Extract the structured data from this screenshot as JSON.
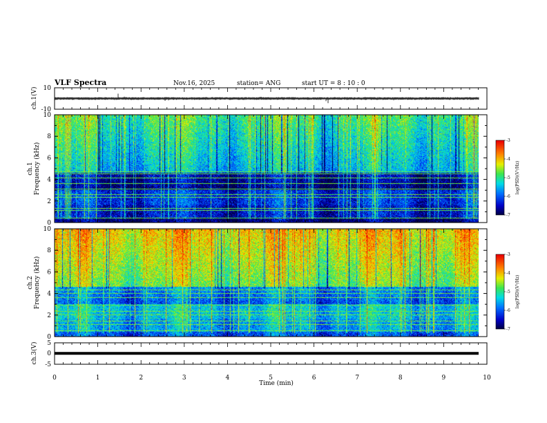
{
  "header": {
    "title": "VLF Spectra",
    "date": "Nov.16, 2025",
    "station": "station= ANG",
    "start": "start  UT =   8  : 10 : 0"
  },
  "colors": {
    "ch1_line": "#000000",
    "ch3_line": "#000000"
  },
  "chart_data": [
    {
      "type": "line",
      "name": "ch1-waveform",
      "ylabel": "ch.1(V)",
      "ylim": [
        -10,
        10
      ],
      "yticks": [
        "10",
        "-10"
      ],
      "xlim": [
        0,
        10
      ],
      "baseline": 0,
      "spikes": [
        {
          "x": 0.15,
          "y": -1.2
        },
        {
          "x": 0.42,
          "y": -1.5
        },
        {
          "x": 0.68,
          "y": 0.8
        },
        {
          "x": 1.47,
          "y": 4.5
        },
        {
          "x": 1.62,
          "y": 1.8
        },
        {
          "x": 2.05,
          "y": -1.0
        },
        {
          "x": 2.55,
          "y": -2.2
        },
        {
          "x": 2.63,
          "y": -1.8
        },
        {
          "x": 3.72,
          "y": -1.5
        },
        {
          "x": 4.78,
          "y": 1.6
        },
        {
          "x": 5.85,
          "y": -1.0
        },
        {
          "x": 6.1,
          "y": -1.3
        },
        {
          "x": 6.28,
          "y": -2.5
        },
        {
          "x": 6.33,
          "y": -4.3
        },
        {
          "x": 7.85,
          "y": -1.7
        },
        {
          "x": 8.35,
          "y": -1.2
        },
        {
          "x": 9.45,
          "y": -1.0
        }
      ]
    },
    {
      "type": "heatmap",
      "name": "ch1-spectrogram",
      "ylabel_line1": "ch.1",
      "ylabel_line2": "Frequency  (kHz)",
      "ylim": [
        0,
        10
      ],
      "yticks": [
        "0",
        "2",
        "4",
        "6",
        "8",
        "10"
      ],
      "xlim": [
        0,
        9.85
      ],
      "mean_level": -5.2,
      "narrowband_khz": [
        0.4,
        1.1,
        1.3,
        2.3,
        2.6,
        3.1,
        3.6,
        4.1,
        4.5,
        4.7
      ],
      "colorbar": {
        "label": "log(PSD)(V²/Hz)",
        "ticks": [
          "-3",
          "-4",
          "-5",
          "-6",
          "-7"
        ],
        "range": [
          -7,
          -3
        ]
      }
    },
    {
      "type": "heatmap",
      "name": "ch2-spectrogram",
      "ylabel_line1": "ch.2",
      "ylabel_line2": "Frequency  (kHz)",
      "ylim": [
        0,
        10
      ],
      "yticks": [
        "0",
        "2",
        "4",
        "6",
        "8",
        "10"
      ],
      "xlim": [
        0,
        9.85
      ],
      "mean_level": -4.4,
      "narrowband_khz": [
        0.5,
        1.1,
        1.4,
        2.0,
        2.3,
        2.9,
        3.6,
        4.0,
        4.3
      ],
      "colorbar": {
        "label": "log(PSD)(V²/Hz)",
        "ticks": [
          "-3",
          "-4",
          "-5",
          "-6",
          "-7"
        ],
        "range": [
          -7,
          -3
        ]
      }
    },
    {
      "type": "line",
      "name": "ch3-waveform",
      "ylabel": "ch.3(V)",
      "ylim": [
        -5,
        5
      ],
      "yticks": [
        "5",
        "0",
        "-5"
      ],
      "xlim": [
        0,
        10
      ],
      "constant_value": 0.1
    }
  ],
  "xaxis": {
    "label": "Time  (min)",
    "ticks": [
      "0",
      "1",
      "2",
      "3",
      "4",
      "5",
      "6",
      "7",
      "8",
      "9",
      "10"
    ],
    "range": [
      0,
      10
    ]
  }
}
